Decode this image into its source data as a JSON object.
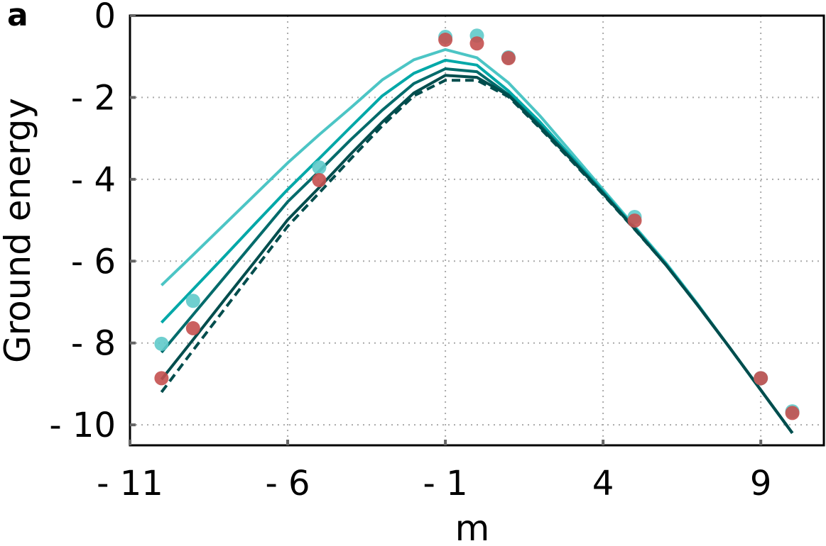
{
  "chart_data": {
    "type": "line",
    "panel_label": "a",
    "xlabel": "m",
    "ylabel": "Ground energy",
    "xlim": [
      -11,
      11
    ],
    "ylim": [
      -10.5,
      0
    ],
    "xticks": [
      -11,
      -6,
      -1,
      4,
      9
    ],
    "xtick_labels": [
      "- 11",
      "- 6",
      "- 1",
      "4",
      "9"
    ],
    "yticks": [
      0,
      -2,
      -4,
      -6,
      -8,
      -10
    ],
    "ytick_labels": [
      "0",
      "- 2",
      "- 4",
      "- 6",
      "- 8",
      "- 10"
    ],
    "grid": true,
    "x": [
      -10,
      -9,
      -8,
      -7,
      -6,
      -5,
      -4,
      -3,
      -2,
      -1,
      0,
      1,
      2,
      3,
      4,
      5,
      6,
      7,
      8,
      9,
      10
    ],
    "series": [
      {
        "color": "#4cc5c5",
        "dash": false,
        "values": [
          -6.59,
          -5.85,
          -5.1,
          -4.35,
          -3.6,
          -2.91,
          -2.25,
          -1.57,
          -1.08,
          -0.83,
          -1.03,
          -1.64,
          -2.45,
          -3.35,
          -4.25,
          -5.15,
          -6.05,
          -7.05,
          -8.1,
          -9.15,
          -10.2
        ]
      },
      {
        "color": "#00a8a8",
        "dash": false,
        "values": [
          -7.5,
          -6.69,
          -5.88,
          -5.06,
          -4.25,
          -3.49,
          -2.72,
          -1.96,
          -1.41,
          -1.09,
          -1.21,
          -1.84,
          -2.6,
          -3.45,
          -4.3,
          -5.18,
          -6.08,
          -7.07,
          -8.1,
          -9.15,
          -10.2
        ]
      },
      {
        "color": "#006b6b",
        "dash": false,
        "values": [
          -8.23,
          -7.31,
          -6.39,
          -5.47,
          -4.55,
          -3.8,
          -3.03,
          -2.31,
          -1.66,
          -1.3,
          -1.37,
          -1.93,
          -2.68,
          -3.5,
          -4.33,
          -5.2,
          -6.1,
          -7.08,
          -8.1,
          -9.15,
          -10.2
        ]
      },
      {
        "color": "#004d4d",
        "dash": false,
        "values": [
          -8.89,
          -7.92,
          -6.94,
          -5.97,
          -4.99,
          -4.2,
          -3.38,
          -2.6,
          -1.89,
          -1.46,
          -1.51,
          -1.95,
          -2.72,
          -3.52,
          -4.35,
          -5.21,
          -6.1,
          -7.08,
          -8.1,
          -9.15,
          -10.2
        ]
      },
      {
        "color": "#004d4d",
        "dash": true,
        "values": [
          -9.2,
          -8.18,
          -7.17,
          -6.16,
          -5.15,
          -4.33,
          -3.5,
          -2.69,
          -1.96,
          -1.58,
          -1.58,
          -1.98,
          -2.75,
          -3.55,
          -4.37,
          -5.22,
          -6.1,
          -7.08,
          -8.1,
          -9.15,
          -10.2
        ]
      }
    ],
    "scatter": [
      {
        "color": "#5fcaca",
        "x": [
          -10,
          -9,
          -5,
          -1,
          0,
          1,
          5,
          9,
          10
        ],
        "values": [
          -8.02,
          -6.97,
          -3.71,
          -0.52,
          -0.49,
          -1.02,
          -4.92,
          -8.86,
          -9.67
        ]
      },
      {
        "color": "#c4504f",
        "x": [
          -10,
          -9,
          -5,
          -1,
          0,
          1,
          5,
          9,
          10
        ],
        "values": [
          -8.86,
          -7.64,
          -4.02,
          -0.59,
          -0.68,
          -1.04,
          -5.01,
          -8.86,
          -9.71
        ]
      }
    ]
  }
}
